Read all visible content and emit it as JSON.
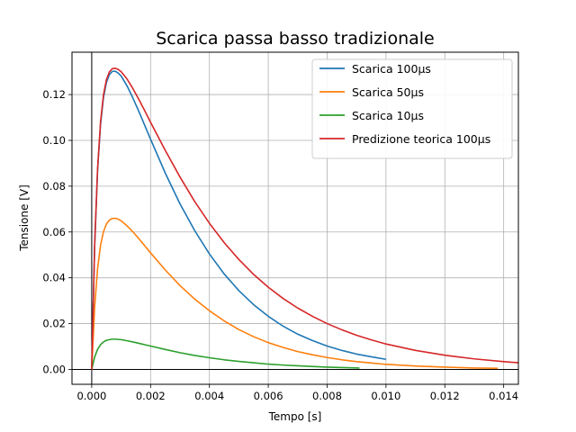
{
  "chart_data": {
    "type": "line",
    "title": "Scarica passa basso tradizionale",
    "xlabel": "Tempo [s]",
    "ylabel": "Tensione [V]",
    "xlim": [
      -0.00067,
      0.0145
    ],
    "ylim": [
      -0.0065,
      0.1385
    ],
    "grid": true,
    "legend_position": "top-right",
    "x_ticks": [
      0.0,
      0.002,
      0.004,
      0.006,
      0.008,
      0.01,
      0.012,
      0.014
    ],
    "x_tick_labels": [
      "0.000",
      "0.002",
      "0.004",
      "0.006",
      "0.008",
      "0.010",
      "0.012",
      "0.014"
    ],
    "y_ticks": [
      0.0,
      0.02,
      0.04,
      0.06,
      0.08,
      0.1,
      0.12
    ],
    "y_tick_labels": [
      "0.00",
      "0.02",
      "0.04",
      "0.06",
      "0.08",
      "0.10",
      "0.12"
    ],
    "reference_lines": [
      {
        "orientation": "vertical",
        "value": 0.0,
        "color": "#000000"
      },
      {
        "orientation": "horizontal",
        "value": 0.0,
        "color": "#000000"
      }
    ],
    "series": [
      {
        "name": "Scarica 100μs",
        "color": "#1f77b4",
        "x": [
          0,
          0.0001,
          0.0002,
          0.0003,
          0.0004,
          0.0005,
          0.0006,
          0.0007,
          0.0008,
          0.0009,
          0.001,
          0.0012,
          0.0014,
          0.0016,
          0.0018,
          0.002,
          0.0025,
          0.003,
          0.0035,
          0.004,
          0.0045,
          0.005,
          0.0055,
          0.006,
          0.0065,
          0.007,
          0.0075,
          0.008,
          0.0085,
          0.009,
          0.0095,
          0.01
        ],
        "y": [
          0,
          0.0539,
          0.087,
          0.107,
          0.1187,
          0.1253,
          0.1287,
          0.1301,
          0.1302,
          0.1294,
          0.1281,
          0.1238,
          0.1185,
          0.1127,
          0.1066,
          0.1005,
          0.0857,
          0.0723,
          0.0606,
          0.0504,
          0.0417,
          0.0344,
          0.0283,
          0.0232,
          0.0189,
          0.0154,
          0.0126,
          0.0102,
          0.0083,
          0.0067,
          0.0055,
          0.0044
        ]
      },
      {
        "name": "Scarica 50μs",
        "color": "#ff7f0e",
        "x": [
          0,
          0.0001,
          0.0002,
          0.0003,
          0.0004,
          0.0005,
          0.0006,
          0.0007,
          0.0008,
          0.0009,
          0.001,
          0.0012,
          0.0014,
          0.0016,
          0.0018,
          0.002,
          0.0025,
          0.003,
          0.0035,
          0.004,
          0.0045,
          0.005,
          0.0055,
          0.006,
          0.0065,
          0.007,
          0.0075,
          0.008,
          0.0085,
          0.009,
          0.0095,
          0.01,
          0.011,
          0.012,
          0.013,
          0.0138
        ],
        "y": [
          0,
          0.0273,
          0.0441,
          0.0542,
          0.0601,
          0.0635,
          0.0652,
          0.0659,
          0.066,
          0.0656,
          0.0649,
          0.0627,
          0.0601,
          0.0571,
          0.054,
          0.0509,
          0.0434,
          0.0366,
          0.0307,
          0.0256,
          0.0212,
          0.0174,
          0.0143,
          0.0117,
          0.0096,
          0.0078,
          0.0064,
          0.0052,
          0.0042,
          0.0034,
          0.0028,
          0.0022,
          0.0015,
          0.001,
          0.0006,
          0.0005
        ]
      },
      {
        "name": "Scarica 10μs",
        "color": "#2ca02c",
        "x": [
          0,
          0.0001,
          0.0002,
          0.0003,
          0.0004,
          0.0005,
          0.0006,
          0.0007,
          0.0008,
          0.0009,
          0.001,
          0.0012,
          0.0014,
          0.0016,
          0.0018,
          0.002,
          0.0025,
          0.003,
          0.0035,
          0.004,
          0.0045,
          0.005,
          0.0055,
          0.006,
          0.0065,
          0.007,
          0.0075,
          0.008,
          0.0085,
          0.0091
        ],
        "y": [
          0,
          0.0054,
          0.0088,
          0.0108,
          0.012,
          0.0127,
          0.013,
          0.0132,
          0.0132,
          0.0131,
          0.013,
          0.0125,
          0.012,
          0.0114,
          0.0108,
          0.0102,
          0.0087,
          0.0073,
          0.0061,
          0.0051,
          0.0042,
          0.0035,
          0.0029,
          0.0023,
          0.0019,
          0.0016,
          0.0013,
          0.001,
          0.0008,
          0.0006
        ]
      },
      {
        "name": "Predizione teorica 100μs",
        "color": "#d62728",
        "x": [
          0,
          0.0001,
          0.0002,
          0.0003,
          0.0004,
          0.0005,
          0.0006,
          0.0007,
          0.0008,
          0.0009,
          0.001,
          0.0012,
          0.0014,
          0.0016,
          0.0018,
          0.002,
          0.0025,
          0.003,
          0.0035,
          0.004,
          0.0045,
          0.005,
          0.0055,
          0.006,
          0.0065,
          0.007,
          0.0075,
          0.008,
          0.0085,
          0.009,
          0.0095,
          0.01,
          0.011,
          0.012,
          0.013,
          0.014,
          0.0145
        ],
        "y": [
          0,
          0.0544,
          0.0879,
          0.1081,
          0.1199,
          0.1265,
          0.1299,
          0.1313,
          0.1315,
          0.131,
          0.13,
          0.1268,
          0.1226,
          0.1179,
          0.113,
          0.1079,
          0.0956,
          0.084,
          0.0733,
          0.0638,
          0.0554,
          0.048,
          0.0415,
          0.0359,
          0.031,
          0.0268,
          0.0232,
          0.02,
          0.0173,
          0.0149,
          0.0129,
          0.0111,
          0.0083,
          0.0062,
          0.0046,
          0.0034,
          0.0029
        ]
      }
    ]
  }
}
